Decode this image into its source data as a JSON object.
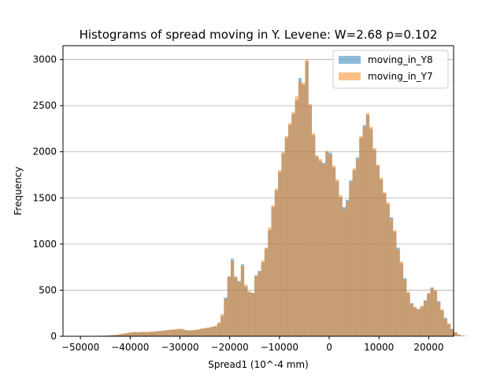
{
  "chart_data": {
    "type": "bar",
    "title": "Histograms of spread moving in Y. Levene: W=2.68 p=0.102",
    "xlabel": "Spread1 (10^-4 mm)",
    "ylabel": "Frequency",
    "xlim": [
      -53500,
      25000
    ],
    "ylim": [
      0,
      3150
    ],
    "xticks": [
      -50000,
      -40000,
      -30000,
      -20000,
      -10000,
      0,
      10000,
      20000
    ],
    "yticks": [
      0,
      500,
      1000,
      1500,
      2000,
      2500,
      3000
    ],
    "xtick_labels": [
      "−50000",
      "−40000",
      "−30000",
      "−20000",
      "−10000",
      "0",
      "10000",
      "20000"
    ],
    "ytick_labels": [
      "0",
      "500",
      "1000",
      "1500",
      "2000",
      "2500",
      "3000"
    ],
    "grid": "horizontal",
    "legend_position": "top-right",
    "bin_start": -47000,
    "bin_width": 680,
    "series": [
      {
        "name": "moving_in_Y8",
        "color": "#1f77b4",
        "opacity": 0.5,
        "values": [
          3,
          5,
          6,
          8,
          10,
          12,
          16,
          22,
          28,
          34,
          40,
          45,
          44,
          47,
          46,
          45,
          48,
          50,
          55,
          58,
          62,
          66,
          70,
          72,
          74,
          78,
          66,
          62,
          64,
          66,
          72,
          80,
          86,
          92,
          100,
          108,
          140,
          220,
          420,
          650,
          840,
          640,
          600,
          780,
          540,
          480,
          470,
          660,
          710,
          800,
          950,
          1150,
          1400,
          1580,
          1780,
          1980,
          2150,
          2290,
          2410,
          2560,
          2800,
          2730,
          2980,
          2500,
          2180,
          1950,
          1900,
          1880,
          2000,
          1990,
          1830,
          1680,
          1510,
          1400,
          1480,
          1690,
          1800,
          1940,
          2150,
          2290,
          2400,
          2250,
          2020,
          1850,
          1700,
          1550,
          1430,
          1290,
          1130,
          960,
          790,
          630,
          470,
          360,
          310,
          295,
          320,
          390,
          460,
          530,
          490,
          380,
          280,
          200,
          130,
          80,
          40,
          18,
          8,
          3
        ]
      },
      {
        "name": "moving_in_Y7",
        "color": "#ff7f0e",
        "opacity": 0.5,
        "values": [
          3,
          5,
          6,
          9,
          11,
          14,
          18,
          24,
          30,
          36,
          42,
          46,
          45,
          48,
          47,
          46,
          50,
          52,
          57,
          60,
          64,
          68,
          72,
          75,
          80,
          82,
          70,
          64,
          66,
          70,
          76,
          84,
          90,
          96,
          104,
          114,
          150,
          240,
          400,
          640,
          820,
          650,
          590,
          760,
          560,
          490,
          470,
          650,
          700,
          820,
          960,
          1180,
          1420,
          1600,
          1800,
          2000,
          2170,
          2310,
          2430,
          2600,
          2760,
          2750,
          3000,
          2520,
          2200,
          1960,
          1920,
          1860,
          2010,
          1970,
          1850,
          1700,
          1530,
          1380,
          1460,
          1670,
          1820,
          1920,
          2170,
          2270,
          2420,
          2270,
          2040,
          1860,
          1720,
          1560,
          1450,
          1270,
          1150,
          940,
          810,
          610,
          480,
          350,
          320,
          290,
          330,
          380,
          470,
          520,
          500,
          370,
          290,
          190,
          140,
          75,
          45,
          16,
          9,
          2
        ]
      }
    ]
  }
}
